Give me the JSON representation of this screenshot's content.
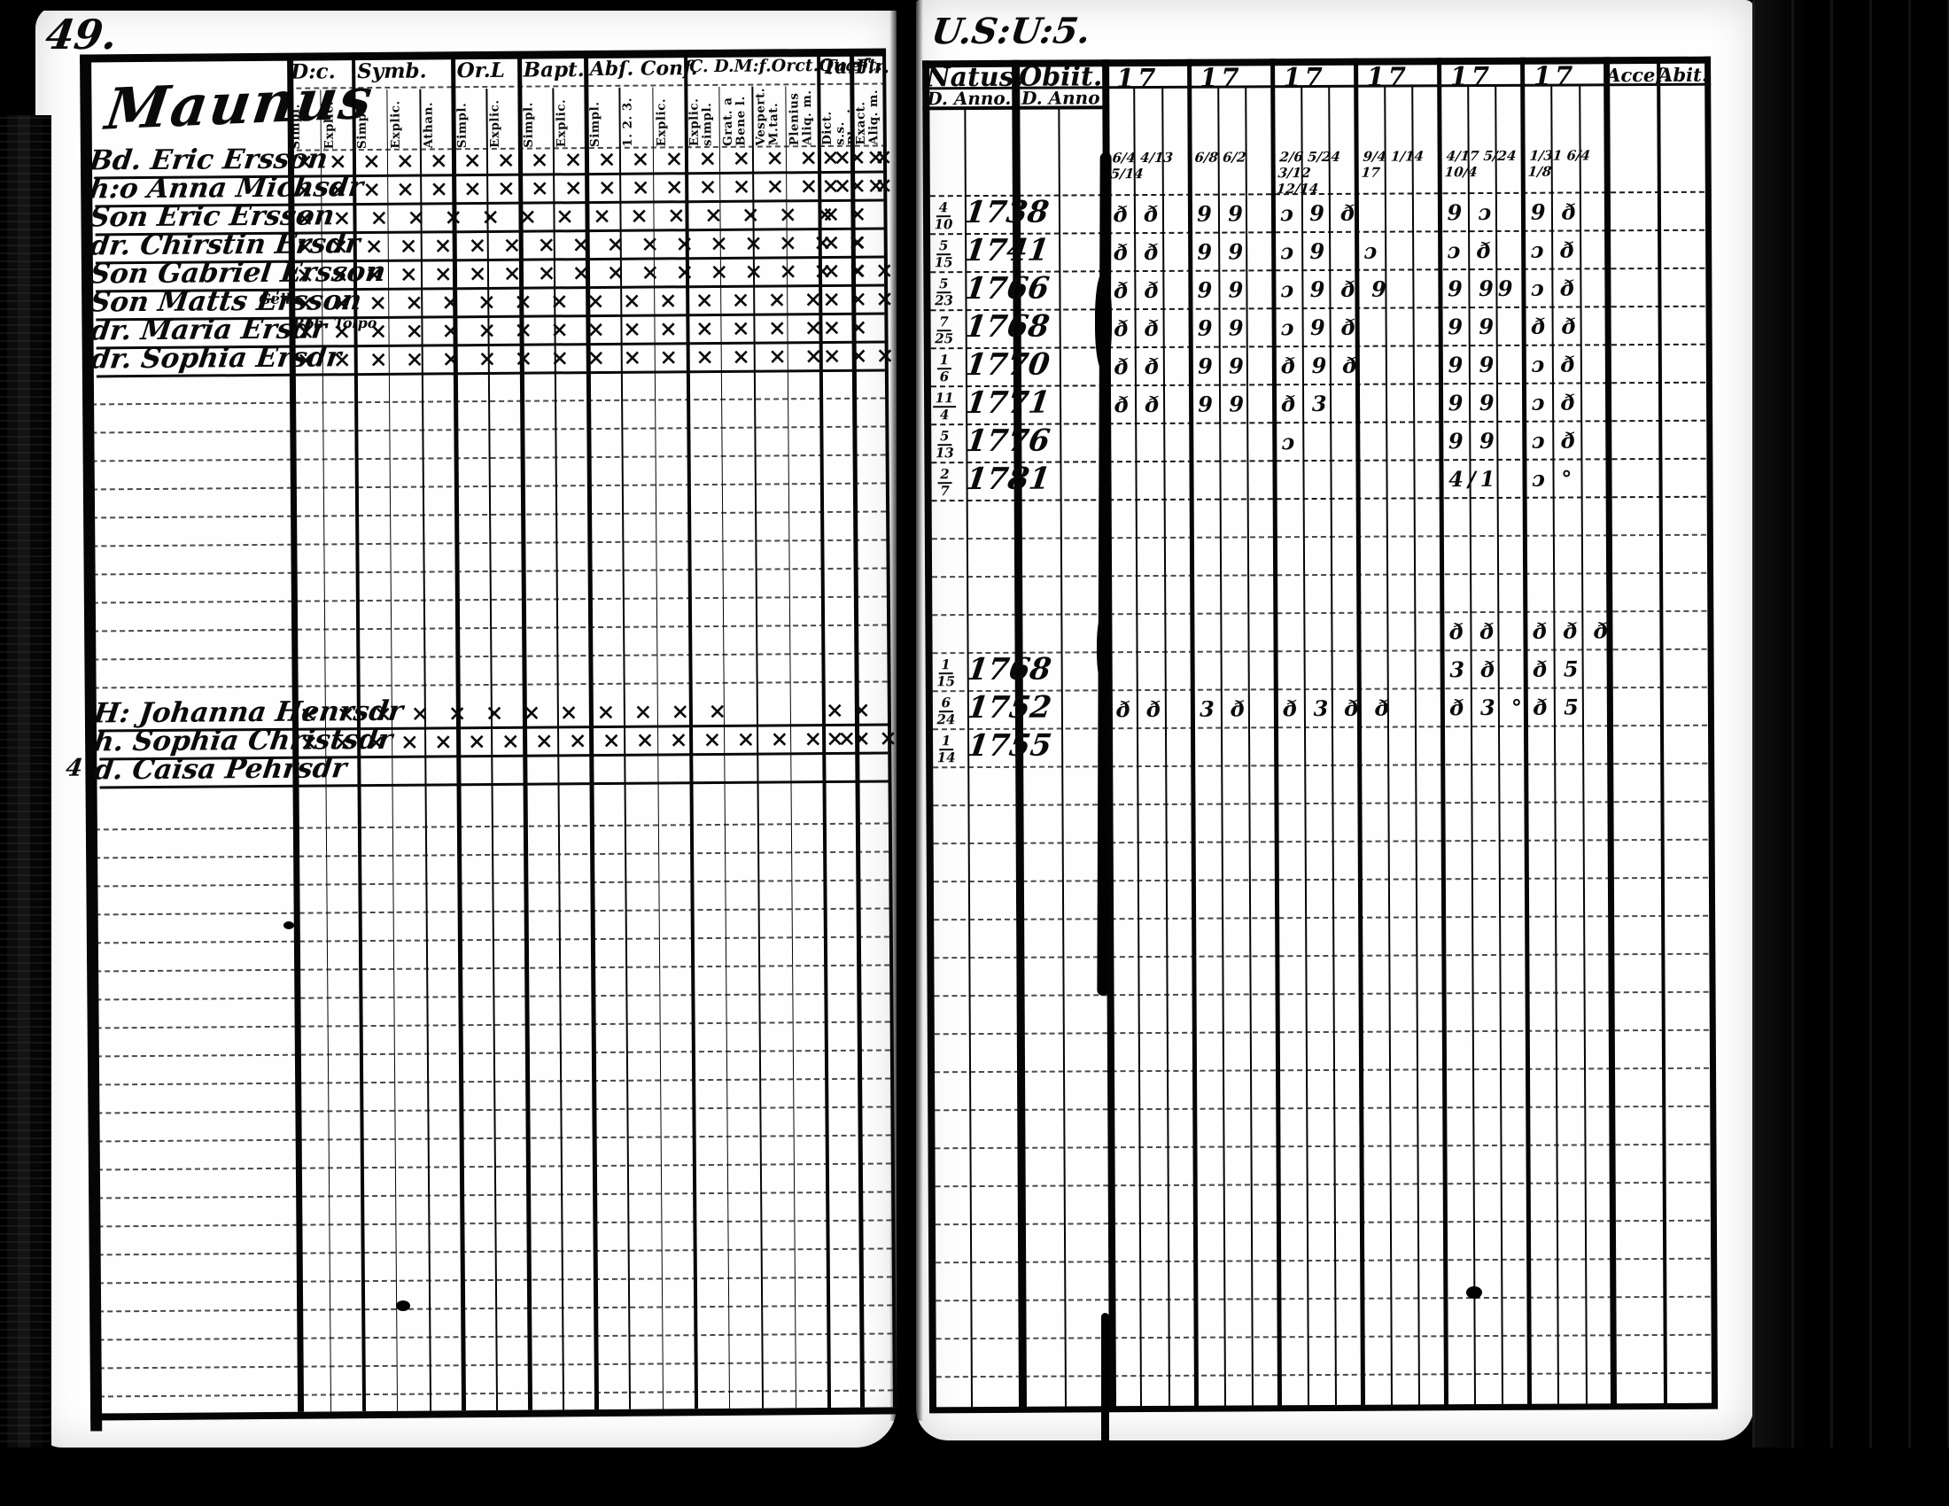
{
  "scan": {
    "page_number": "49.",
    "inscription": "U.S:U:5.",
    "paper_color": "#fefefe",
    "ink_color": "#050505",
    "background_color": "#000000"
  },
  "left_page": {
    "title": "Maunus",
    "header_groups": [
      {
        "label": "D:c.",
        "cols": 2
      },
      {
        "label": "Symb.",
        "cols": 3
      },
      {
        "label": "Or.L",
        "cols": 2
      },
      {
        "label": "Bapt.",
        "cols": 2
      },
      {
        "label": "Abſ. Conf.",
        "cols": 3
      },
      {
        "label": "C. D.M:f.Orct.Quæſt.",
        "cols": 4
      },
      {
        "label": "Tar",
        "cols": 1
      },
      {
        "label": "F.r.",
        "cols": 1
      }
    ],
    "sub_headers": [
      "Simpl.",
      "Explic.",
      "Simpl.",
      "Explic.",
      "Athan.",
      "Simpl.",
      "Explic.",
      "Simpl.",
      "Explic.",
      "Simpl.",
      "1. 2. 3.",
      "Explic.",
      "Explic. simpl.",
      "Grat. a Bene l.",
      "Vespert. M.tat.",
      "Plenius Aliq. m.",
      "Dict. s.s. Plenius",
      "Exact. Aliq. m."
    ],
    "rows": [
      {
        "name": "Bd. Eric Ersson",
        "marks": "××××××××××××××××××",
        "tail": "×××"
      },
      {
        "name": "h:o Anna Michsdr",
        "marks": "××××××××××××××××××",
        "tail": "×××"
      },
      {
        "name": "Son Eric Ersson",
        "marks": "×××××××××××××××",
        "tail": "××"
      },
      {
        "name": "dr. Chirstin Ersdr",
        "marks": "×××××××××××××××××",
        "tail": "××"
      },
      {
        "name": "Son Gabriel Ersson",
        "marks": "×××××××××××××××××",
        "tail": "×××"
      },
      {
        "name": "Son Matts Ersson",
        "marks": "×××××××××××××××",
        "tail": "×××"
      },
      {
        "name": "dr. Maria Ersdr",
        "marks": "×××××××××××××××",
        "tail": "××"
      },
      {
        "name": "dr. Sophia Ersdr",
        "marks": "×××××××××××××××",
        "tail": "×××"
      },
      {
        "name": "H: Johanna Henrsdr",
        "marks": "××××××××××××",
        "tail": "××"
      },
      {
        "name": "h. Sophia Christsdr",
        "marks": "×××××××××××××××××",
        "tail": "×××"
      },
      {
        "name": "d. Caisa Pehrsdr",
        "marks": "",
        "tail": ""
      }
    ],
    "annotations": [
      {
        "text": "Gello."
      },
      {
        "text": "Rob. Tolpo"
      }
    ],
    "margin_marks": [
      {
        "text": "4"
      }
    ]
  },
  "right_page": {
    "headers": {
      "natus": "Natus.",
      "obiit": "Obiit.",
      "year_prefix": "17",
      "acces": "Acceſ.",
      "abit": "Abit.",
      "d_anno_natus": "D. Anno.",
      "d_anno_obiit": "D. Anno"
    },
    "natus_entries": [
      {
        "day": "4",
        "mo": "10",
        "year": "1738"
      },
      {
        "day": "5",
        "mo": "15",
        "year": "1741"
      },
      {
        "day": "5",
        "mo": "23",
        "year": "1766"
      },
      {
        "day": "7",
        "mo": "25",
        "year": "1768"
      },
      {
        "day": "1",
        "mo": "6",
        "year": "1770"
      },
      {
        "day": "11",
        "mo": "4",
        "year": "1771"
      },
      {
        "day": "5",
        "mo": "13",
        "year": "1776"
      },
      {
        "day": "2",
        "mo": "7",
        "year": "1781"
      }
    ],
    "natus_entries_lower": [
      {
        "day": "1",
        "mo": "15",
        "year": "1768"
      },
      {
        "day": "6",
        "mo": "24",
        "year": "1752"
      },
      {
        "day": "1",
        "mo": "14",
        "year": "1755"
      }
    ],
    "fraction_row": [
      "6/4 4/13 5/14",
      "6/8 6/2",
      "2/6 5/24 3/12 12/14",
      "9/4 1/14 17",
      "4/17 5/24 10/4",
      "1/31 6/4 1/8"
    ],
    "mark_rows": [
      {
        "cells": [
          "ð ð",
          "9 9",
          "ɔ 9 ð",
          "",
          "9 ɔ",
          "9 ð"
        ]
      },
      {
        "cells": [
          "ð ð",
          "9 9",
          "ɔ 9",
          "ɔ",
          "ɔ ð",
          "ɔ ð"
        ]
      },
      {
        "cells": [
          "ð ð",
          "9 9",
          "ɔ 9 ð 9",
          "",
          "9 99",
          "ɔ ð"
        ]
      },
      {
        "cells": [
          "ð ð",
          "9 9",
          "ɔ 9 ð",
          "",
          "9 9",
          "ð ð"
        ]
      },
      {
        "cells": [
          "ð ð",
          "9 9",
          "ð 9 ð",
          "",
          "9 9",
          "ɔ ð"
        ]
      },
      {
        "cells": [
          "ð ð",
          "9 9",
          "ð 3",
          "",
          "9 9",
          "ɔ ð"
        ]
      },
      {
        "cells": [
          "",
          "",
          "ɔ",
          "",
          "9 9",
          "ɔ ð"
        ]
      },
      {
        "cells": [
          "",
          "",
          "",
          "",
          "4/1",
          "ɔ °"
        ]
      },
      {
        "cells": [
          "",
          "",
          "",
          "",
          "ð ð",
          "ð ð ð"
        ]
      },
      {
        "cells": [
          "",
          "",
          "",
          "",
          "3 ð",
          "ð 5"
        ]
      },
      {
        "cells": [
          "ð ð",
          "3 ð",
          "ð 3 ð ð",
          "",
          "ð 3 °",
          "ð 5"
        ]
      },
      {
        "cells": [
          "",
          "",
          "",
          "",
          "",
          ""
        ]
      }
    ]
  }
}
